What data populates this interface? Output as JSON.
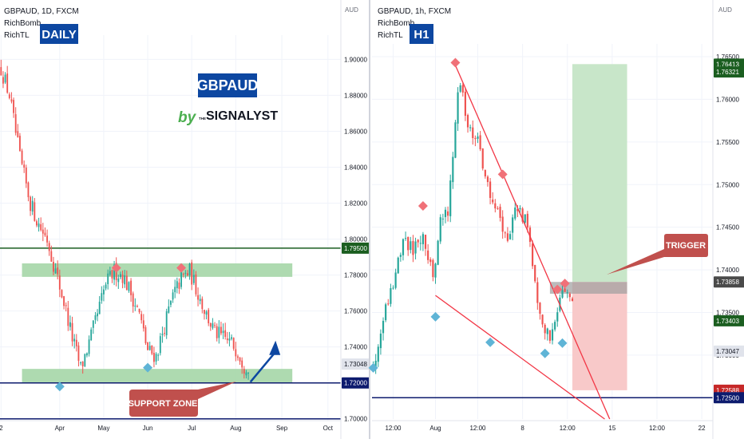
{
  "colors": {
    "up": "#26a69a",
    "down": "#ef5350",
    "zone_green": "#a5d6a7",
    "trend_red": "#f23645",
    "h_green": "#1b5e20",
    "h_navy": "#0d1b6e",
    "arrow_blue": "#0d47a1",
    "label_red": "#c0504d",
    "badge_blue": "#0d47a1",
    "pivot_red": "#f07178",
    "pivot_blue": "#5fb4d6"
  },
  "brand": {
    "pair": "GBPAUD",
    "by": "by",
    "the": "THE",
    "name": "SIGNALYST"
  },
  "left": {
    "legend": {
      "symbol": "GBPAUD, 1D, FXCM",
      "ind1": "RichBomb",
      "ind2": "RichTL"
    },
    "badge": "DAILY",
    "currency": "AUD",
    "support_label": "SUPPORT ZONE",
    "price_tags": [
      {
        "value": "1.79500",
        "color": "#1b5e20",
        "y": 1.795
      },
      {
        "value": "1.73048",
        "color": "#e0e3eb",
        "y": 1.73048
      },
      {
        "value": "1.72000",
        "color": "#0d1b6e",
        "y": 1.72
      }
    ]
  },
  "right": {
    "legend": {
      "symbol": "GBPAUD, 1h, FXCM",
      "ind1": "RichBomb",
      "ind2": "RichTL"
    },
    "badge": "H1",
    "currency": "AUD",
    "trigger_label": "TRIGGER",
    "price_tags": [
      {
        "value": "1.76413",
        "color": "#1b5e20",
        "y": 1.76413
      },
      {
        "value": "1.76321",
        "color": "#1b5e20",
        "y": 1.76321
      },
      {
        "value": "1.73858",
        "color": "#4a4a4a",
        "y": 1.73858
      },
      {
        "value": "1.73403",
        "color": "#1b5e20",
        "y": 1.73403
      },
      {
        "value": "1.73047",
        "color": "#e0e3eb",
        "y": 1.73047
      },
      {
        "value": "1.72588",
        "color": "#c62828",
        "y": 1.72588
      },
      {
        "value": "1.72500",
        "color": "#0d1b6e",
        "y": 1.725
      }
    ]
  },
  "chart_data": [
    {
      "type": "candlestick",
      "title": "GBPAUD, 1D, FXCM",
      "ylabel": "AUD",
      "ylim": [
        1.699,
        1.9135
      ],
      "y_ticks": [
        "1.90000",
        "1.88000",
        "1.86000",
        "1.84000",
        "1.82000",
        "1.80000",
        "1.78000",
        "1.76000",
        "1.74000",
        "1.72000",
        "1.70000"
      ],
      "x_tick_labels": [
        "2",
        "Apr",
        "May",
        "Jun",
        "Jul",
        "Aug",
        "Sep",
        "Oct"
      ],
      "x_tick_index": [
        0,
        28,
        49,
        70,
        91,
        112,
        134,
        156
      ],
      "bar_count": 160,
      "close_path": [
        [
          0,
          1.895
        ],
        [
          4,
          1.88
        ],
        [
          9,
          1.845
        ],
        [
          14,
          1.82
        ],
        [
          18,
          1.808
        ],
        [
          22,
          1.8
        ],
        [
          26,
          1.782
        ],
        [
          30,
          1.765
        ],
        [
          34,
          1.745
        ],
        [
          38,
          1.728
        ],
        [
          42,
          1.742
        ],
        [
          46,
          1.758
        ],
        [
          50,
          1.775
        ],
        [
          54,
          1.782
        ],
        [
          58,
          1.78
        ],
        [
          62,
          1.77
        ],
        [
          66,
          1.758
        ],
        [
          70,
          1.738
        ],
        [
          74,
          1.735
        ],
        [
          78,
          1.752
        ],
        [
          82,
          1.768
        ],
        [
          86,
          1.778
        ],
        [
          90,
          1.782
        ],
        [
          94,
          1.77
        ],
        [
          98,
          1.758
        ],
        [
          102,
          1.748
        ],
        [
          106,
          1.745
        ],
        [
          110,
          1.742
        ],
        [
          113,
          1.738
        ],
        [
          116,
          1.73
        ],
        [
          118,
          1.73
        ]
      ],
      "lines": [
        {
          "name": "",
          "y": 1.795,
          "color": "#1b5e20"
        },
        {
          "name": "",
          "y": 1.72,
          "color": "#0d1b6e"
        },
        {
          "name": "",
          "y": 1.7,
          "color": "#0d1b6e"
        }
      ],
      "zones": [
        {
          "y_low": 1.779,
          "y_high": 1.7865,
          "x_from": 10,
          "x_to": 139
        },
        {
          "y_low": 1.72,
          "y_high": 1.7278,
          "x_from": 10,
          "x_to": 139
        }
      ],
      "pivots_high": [
        [
          55,
          1.784
        ],
        [
          86,
          1.784
        ]
      ],
      "pivots_low": [
        [
          28,
          1.718
        ],
        [
          70,
          1.7285
        ]
      ],
      "arrow": {
        "from": [
          119,
          1.7205
        ],
        "to": [
          131,
          1.7435
        ]
      },
      "annotations": [
        "SUPPORT ZONE"
      ]
    },
    {
      "type": "candlestick",
      "title": "GBPAUD, 1h, FXCM",
      "ylabel": "AUD",
      "ylim": [
        1.7225,
        1.7665
      ],
      "y_ticks": [
        "1.76500",
        "1.76000",
        "1.75500",
        "1.75000",
        "1.74500",
        "1.74000",
        "1.73500",
        "1.73000",
        "1.72500"
      ],
      "x_tick_labels": [
        "12:00",
        "Aug",
        "12:00",
        "8",
        "12:00",
        "15",
        "12:00",
        "22"
      ],
      "x_tick_index": [
        8,
        25,
        42,
        60,
        78,
        96,
        114,
        132
      ],
      "bar_count": 136,
      "close_path": [
        [
          0,
          1.7285
        ],
        [
          4,
          1.735
        ],
        [
          8,
          1.7385
        ],
        [
          12,
          1.7435
        ],
        [
          16,
          1.7425
        ],
        [
          20,
          1.7445
        ],
        [
          24,
          1.739
        ],
        [
          27,
          1.7465
        ],
        [
          30,
          1.7465
        ],
        [
          33,
          1.7575
        ],
        [
          35,
          1.7625
        ],
        [
          38,
          1.757
        ],
        [
          42,
          1.755
        ],
        [
          46,
          1.7495
        ],
        [
          50,
          1.747
        ],
        [
          54,
          1.743
        ],
        [
          58,
          1.7475
        ],
        [
          62,
          1.745
        ],
        [
          66,
          1.737
        ],
        [
          68,
          1.7335
        ],
        [
          71,
          1.7325
        ],
        [
          74,
          1.736
        ],
        [
          77,
          1.7375
        ],
        [
          80,
          1.7365
        ]
      ],
      "lines": [
        {
          "name": "",
          "y": 1.725,
          "color": "#0d1b6e"
        }
      ],
      "trendlines": [
        {
          "from": [
            33,
            1.764
          ],
          "to": [
            95,
            1.7225
          ]
        },
        {
          "from": [
            25,
            1.737
          ],
          "to": [
            93,
            1.7225
          ]
        }
      ],
      "position": {
        "entry": 1.73858,
        "stop": 1.72588,
        "target": 1.76413,
        "entry_band_low": 1.7372,
        "x_from": 80,
        "x_to": 102
      },
      "pivots_high": [
        [
          33,
          1.7643
        ],
        [
          20,
          1.7475
        ],
        [
          52,
          1.7512
        ],
        [
          74,
          1.7377
        ],
        [
          77,
          1.7384
        ]
      ],
      "pivots_low": [
        [
          0,
          1.7285
        ],
        [
          25,
          1.7345
        ],
        [
          47,
          1.7315
        ],
        [
          69,
          1.7302
        ],
        [
          76,
          1.7314
        ]
      ],
      "annotations": [
        "TRIGGER"
      ]
    }
  ]
}
